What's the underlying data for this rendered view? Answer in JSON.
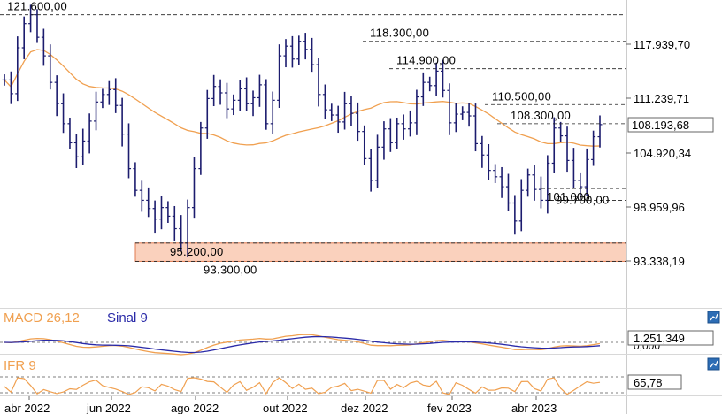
{
  "chart_data": {
    "type": "ohlc",
    "price_panel": {
      "y_axis_ticks": [
        "117.939,70",
        "111.239,71",
        "104.920,34",
        "98.959,96",
        "93.338,19"
      ],
      "y_axis_tick_values": [
        117939.7,
        111239.71,
        104920.34,
        98959.96,
        93338.19
      ],
      "current_price_label": "108.193,68",
      "current_price": 108193.68,
      "moving_average": {
        "color": "#f0a050"
      },
      "bar_color": "#1c1c6e",
      "zone": {
        "low": 93300,
        "high": 95200,
        "color": "#fad1bd"
      },
      "levels": [
        {
          "label": "121.600,00",
          "value": 121600
        },
        {
          "label": "118.300,00",
          "value": 118300
        },
        {
          "label": "114.900,00",
          "value": 114900
        },
        {
          "label": "110.500,00",
          "value": 110500
        },
        {
          "label": "108.300,00",
          "value": 108300
        },
        {
          "label": "101.000",
          "value": 101000
        },
        {
          "label": "99.700,00",
          "value": 99700
        },
        {
          "label": "95.200,00",
          "value": 95200
        },
        {
          "label": "93.300,00",
          "value": 93300
        }
      ],
      "close_series": [
        113500,
        111800,
        117500,
        120500,
        121600,
        118800,
        116500,
        113200,
        110600,
        108300,
        106100,
        104500,
        106300,
        108600,
        110800,
        111700,
        112300,
        110400,
        107100,
        103200,
        100800,
        99700,
        98800,
        97700,
        98900,
        98000,
        96700,
        95200,
        98900,
        103200,
        107800,
        111200,
        112700,
        111900,
        110000,
        111000,
        112400,
        110600,
        111300,
        112900,
        108300,
        111000,
        116500,
        117700,
        116100,
        118300,
        117300,
        115400,
        111700,
        109900,
        109300,
        108500,
        110600,
        109500,
        107400,
        104300,
        101900,
        105600,
        107700,
        106100,
        108300,
        107700,
        108400,
        111400,
        113200,
        112800,
        114600,
        112200,
        108400,
        109400,
        109600,
        109200,
        106000,
        104700,
        103000,
        102300,
        101200,
        99400,
        97500,
        100800,
        102500,
        100900,
        99700,
        103800,
        107800,
        106900,
        104100,
        101900,
        101200,
        104200,
        106800,
        108193.68
      ]
    },
    "macd_panel": {
      "title": "MACD 26,12",
      "signal_title": "Sinal 9",
      "value_label": "1.251,349",
      "zero_label": "0,000",
      "macd_color": "#f0a050",
      "signal_color": "#2a2aa8"
    },
    "rsi_panel": {
      "title": "IFR 9",
      "value_label": "65,78",
      "color": "#f0a050"
    },
    "x_axis_labels": [
      "abr 2022",
      "jun 2022",
      "ago 2022",
      "out 2022",
      "dez 2022",
      "fev 2023",
      "abr 2023"
    ]
  }
}
